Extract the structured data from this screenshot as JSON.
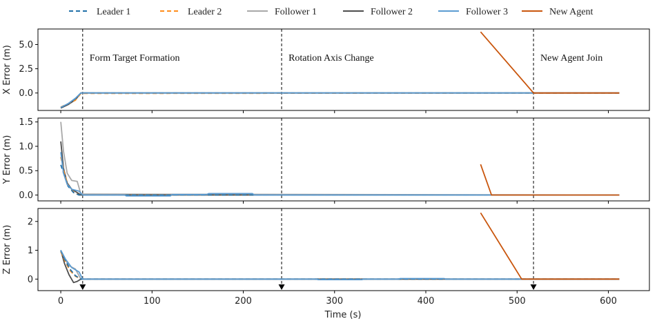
{
  "chart_data": {
    "type": "line",
    "xlabel": "Time (s)",
    "xlim": [
      -25,
      645
    ],
    "x_ticks": [
      0,
      100,
      200,
      300,
      400,
      500,
      600
    ],
    "legend": {
      "placement": "top",
      "entries": [
        {
          "name": "Leader 1",
          "color": "#1f6fa8",
          "dash": true
        },
        {
          "name": "Leader 2",
          "color": "#ff8c1a",
          "dash": true
        },
        {
          "name": "Follower 1",
          "color": "#a8a8a8",
          "dash": false
        },
        {
          "name": "Follower 2",
          "color": "#4d4d4d",
          "dash": false
        },
        {
          "name": "Follower 3",
          "color": "#5b9bd1",
          "dash": false
        },
        {
          "name": "New Agent",
          "color": "#c9550c",
          "dash": false
        }
      ]
    },
    "events": [
      {
        "x": 24,
        "label": "Form Target Formation"
      },
      {
        "x": 242,
        "label": "Rotation Axis Change"
      },
      {
        "x": 518,
        "label": "New Agent Join"
      }
    ],
    "event_markers_x": [
      24,
      242,
      518
    ],
    "panels": [
      {
        "ylabel": "X Error (m)",
        "ylim": [
          -1.8,
          6.6
        ],
        "yticks": [
          "5.0",
          "2.5",
          "0.0"
        ],
        "ytick_values": [
          5.0,
          2.5,
          0.0
        ],
        "series": [
          {
            "name": "Follower 1",
            "x": [
              0,
              8,
              16,
              22,
              612
            ],
            "y": [
              -1.5,
              -1.15,
              -0.65,
              0.0,
              0.0
            ]
          },
          {
            "name": "Follower 2",
            "x": [
              0,
              8,
              16,
              22,
              612
            ],
            "y": [
              -1.55,
              -1.2,
              -0.7,
              0.0,
              0.0
            ]
          },
          {
            "name": "Leader 2",
            "x": [
              0,
              8,
              16,
              22,
              612
            ],
            "y": [
              -1.45,
              -1.1,
              -0.75,
              -0.05,
              0.0
            ]
          },
          {
            "name": "Leader 1",
            "x": [
              0,
              8,
              16,
              22,
              612
            ],
            "y": [
              -1.5,
              -1.12,
              -0.6,
              0.0,
              0.0
            ]
          },
          {
            "name": "Follower 3",
            "x": [
              0,
              8,
              16,
              22,
              612
            ],
            "y": [
              -1.48,
              -1.1,
              -0.55,
              0.0,
              0.0
            ]
          },
          {
            "name": "New Agent",
            "x": [
              460,
              518,
              612
            ],
            "y": [
              6.3,
              0.0,
              0.0
            ]
          }
        ]
      },
      {
        "ylabel": "Y Error (m)",
        "ylim": [
          -0.12,
          1.58
        ],
        "yticks": [
          "1.5",
          "1.0",
          "0.5",
          "0.0"
        ],
        "ytick_values": [
          1.5,
          1.0,
          0.5,
          0.0
        ],
        "series": [
          {
            "name": "Follower 1",
            "x": [
              0,
              3,
              7,
              12,
              18,
              22,
              612
            ],
            "y": [
              1.5,
              0.9,
              0.45,
              0.3,
              0.28,
              0.02,
              0.0
            ]
          },
          {
            "name": "Follower 2",
            "x": [
              0,
              3,
              7,
              12,
              18,
              22,
              612
            ],
            "y": [
              1.1,
              0.55,
              0.25,
              0.12,
              0.05,
              0.0,
              0.0
            ]
          },
          {
            "name": "Leader 2",
            "x": [
              0,
              4,
              8,
              14,
              20,
              612
            ],
            "y": [
              0.78,
              0.45,
              0.2,
              0.06,
              0.0,
              0.0
            ]
          },
          {
            "name": "Leader 1",
            "x": [
              0,
              4,
              8,
              14,
              20,
              612
            ],
            "y": [
              0.62,
              0.4,
              0.18,
              0.05,
              0.0,
              0.0
            ]
          },
          {
            "name": "Follower 3",
            "x": [
              0,
              3,
              7,
              12,
              20,
              24,
              70,
              72,
              120,
              122,
              160,
              162,
              210,
              212,
              612
            ],
            "y": [
              0.88,
              0.45,
              0.22,
              0.12,
              0.08,
              0.0,
              0.0,
              -0.02,
              -0.02,
              0.01,
              0.01,
              0.03,
              0.03,
              0.0,
              0.0
            ]
          },
          {
            "name": "New Agent",
            "x": [
              460,
              472,
              612
            ],
            "y": [
              0.63,
              0.0,
              0.0
            ]
          }
        ]
      },
      {
        "ylabel": "Z Error (m)",
        "ylim": [
          -0.4,
          2.45
        ],
        "yticks": [
          "2",
          "1",
          "0"
        ],
        "ytick_values": [
          2,
          1,
          0
        ],
        "series": [
          {
            "name": "Follower 1",
            "x": [
              0,
              4,
              10,
              16,
              22,
              612
            ],
            "y": [
              1.0,
              0.7,
              0.45,
              0.35,
              0.0,
              0.0
            ]
          },
          {
            "name": "Follower 2",
            "x": [
              0,
              4,
              9,
              14,
              18,
              22,
              612
            ],
            "y": [
              1.0,
              0.55,
              0.15,
              -0.12,
              -0.08,
              0.0,
              0.0
            ]
          },
          {
            "name": "Leader 2",
            "x": [
              0,
              5,
              10,
              16,
              22,
              612
            ],
            "y": [
              0.95,
              0.6,
              0.3,
              0.1,
              0.0,
              0.0
            ]
          },
          {
            "name": "Leader 1",
            "x": [
              0,
              5,
              10,
              16,
              22,
              612
            ],
            "y": [
              0.98,
              0.65,
              0.35,
              0.12,
              0.0,
              0.0
            ]
          },
          {
            "name": "Follower 3",
            "x": [
              0,
              5,
              12,
              20,
              24,
              280,
              282,
              330,
              332,
              370,
              372,
              420,
              422,
              612
            ],
            "y": [
              1.0,
              0.7,
              0.4,
              0.25,
              0.0,
              0.0,
              -0.02,
              -0.02,
              0.0,
              0.0,
              0.02,
              0.02,
              0.0,
              0.0
            ]
          },
          {
            "name": "New Agent",
            "x": [
              460,
              505,
              612
            ],
            "y": [
              2.3,
              0.0,
              0.0
            ]
          }
        ]
      }
    ]
  }
}
